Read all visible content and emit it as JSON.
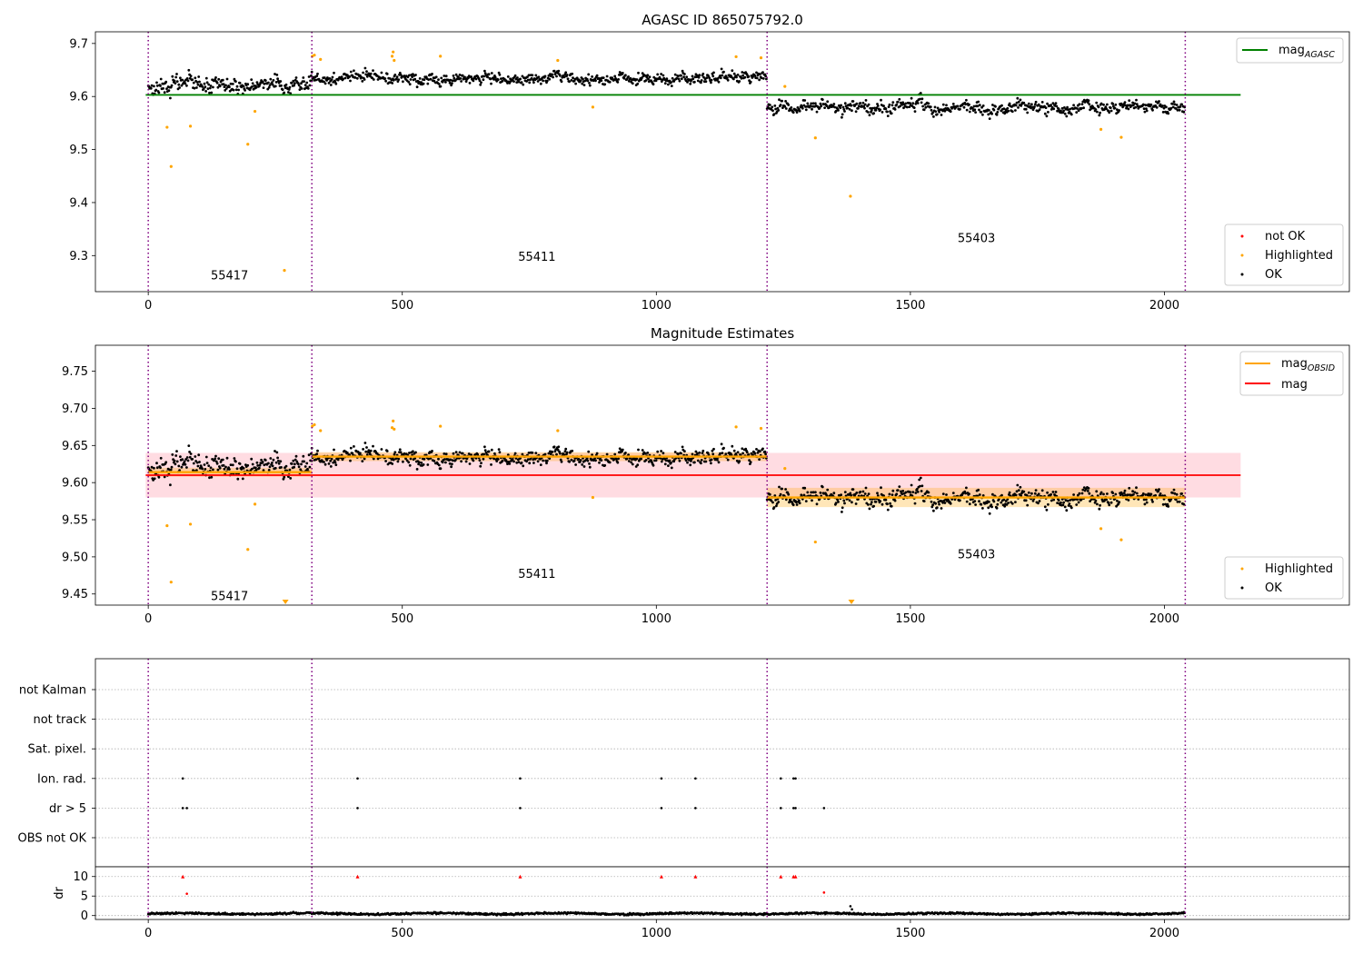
{
  "title": "AGASC ID 865075792.0",
  "colors": {
    "ok": "#000000",
    "highlighted": "#ffa500",
    "not_ok": "#ff0000",
    "mag_agasc": "#008000",
    "mag": "#ff0000",
    "mag_obsid": "#ffa500",
    "obs_boundary": "#800080",
    "band": "#ffc0cb"
  },
  "chart_data": [
    {
      "type": "scatter",
      "title": "AGASC ID 865075792.0",
      "xlim": [
        -104,
        2364
      ],
      "ylim": [
        9.232,
        9.722
      ],
      "xticks": [
        0,
        500,
        1000,
        1500,
        2000
      ],
      "yticks": [
        9.3,
        9.4,
        9.5,
        9.6,
        9.7
      ],
      "grid": false,
      "legend_upper": {
        "position": "top-right",
        "entries": [
          {
            "label": "mag",
            "subscript": "AGASC",
            "style": "line",
            "color": "#008000"
          }
        ]
      },
      "legend_lower": {
        "position": "bottom-right",
        "entries": [
          {
            "label": "not OK",
            "style": "dot",
            "color": "#ff0000"
          },
          {
            "label": "Highlighted",
            "style": "dot",
            "color": "#ffa500"
          },
          {
            "label": "OK",
            "style": "dot",
            "color": "#000000"
          }
        ]
      },
      "mag_agasc": {
        "value": 9.603,
        "x_range": [
          -5,
          2150
        ]
      },
      "obs_boundaries": [
        0,
        322,
        1218,
        2041
      ],
      "obsid_labels": [
        {
          "text": "55417",
          "x": 160,
          "y": 9.255
        },
        {
          "text": "55411",
          "x": 765,
          "y": 9.29
        },
        {
          "text": "55403",
          "x": 1630,
          "y": 9.325
        }
      ],
      "ok_segments": [
        {
          "x_start": 0,
          "x_end": 322,
          "center": 9.622,
          "spread": 0.018
        },
        {
          "x_start": 322,
          "x_end": 1218,
          "center": 9.635,
          "spread": 0.013
        },
        {
          "x_start": 1218,
          "x_end": 2041,
          "center": 9.58,
          "spread": 0.014
        }
      ],
      "highlighted_points": [
        [
          37,
          9.542
        ],
        [
          45,
          9.468
        ],
        [
          83,
          9.544
        ],
        [
          196,
          9.51
        ],
        [
          210,
          9.572
        ],
        [
          268,
          9.272
        ],
        [
          323,
          9.676
        ],
        [
          327,
          9.678
        ],
        [
          339,
          9.67
        ],
        [
          480,
          9.676
        ],
        [
          482,
          9.684
        ],
        [
          484,
          9.668
        ],
        [
          575,
          9.676
        ],
        [
          806,
          9.668
        ],
        [
          875,
          9.58
        ],
        [
          1157,
          9.675
        ],
        [
          1206,
          9.673
        ],
        [
          1253,
          9.619
        ],
        [
          1313,
          9.522
        ],
        [
          1382,
          9.412
        ],
        [
          1875,
          9.538
        ],
        [
          1915,
          9.523
        ]
      ]
    },
    {
      "type": "scatter",
      "title": "Magnitude Estimates",
      "xlim": [
        -104,
        2364
      ],
      "ylim": [
        9.435,
        9.785
      ],
      "xticks": [
        0,
        500,
        1000,
        1500,
        2000
      ],
      "yticks": [
        9.45,
        9.5,
        9.55,
        9.6,
        9.65,
        9.7,
        9.75
      ],
      "grid": false,
      "legend_upper": {
        "position": "top-right",
        "entries": [
          {
            "label": "mag",
            "subscript": "OBSID",
            "style": "line",
            "color": "#ffa500"
          },
          {
            "label": "mag",
            "subscript": "",
            "style": "line",
            "color": "#ff0000"
          }
        ]
      },
      "legend_lower": {
        "position": "bottom-right",
        "entries": [
          {
            "label": "Highlighted",
            "style": "dot",
            "color": "#ffa500"
          },
          {
            "label": "OK",
            "style": "dot",
            "color": "#000000"
          }
        ]
      },
      "mag": {
        "value": 9.61,
        "band": [
          9.58,
          9.64
        ],
        "x_range": [
          -5,
          2150
        ]
      },
      "mag_obsid": [
        {
          "x_start": 0,
          "x_end": 322,
          "value": 9.614,
          "band": [
            9.608,
            9.62
          ]
        },
        {
          "x_start": 322,
          "x_end": 1218,
          "value": 9.635,
          "band": [
            9.629,
            9.641
          ]
        },
        {
          "x_start": 1218,
          "x_end": 2041,
          "value": 9.58,
          "band": [
            9.567,
            9.593
          ]
        }
      ],
      "obs_boundaries": [
        0,
        322,
        1218,
        2041
      ],
      "obsid_labels": [
        {
          "text": "55417",
          "x": 160,
          "y": 9.442
        },
        {
          "text": "55411",
          "x": 765,
          "y": 9.472
        },
        {
          "text": "55403",
          "x": 1630,
          "y": 9.498
        }
      ],
      "ok_segments": [
        {
          "x_start": 0,
          "x_end": 322,
          "center": 9.622,
          "spread": 0.018
        },
        {
          "x_start": 322,
          "x_end": 1218,
          "center": 9.635,
          "spread": 0.013
        },
        {
          "x_start": 1218,
          "x_end": 2041,
          "center": 9.58,
          "spread": 0.014
        }
      ],
      "highlighted_points": [
        [
          37,
          9.542
        ],
        [
          45,
          9.466
        ],
        [
          83,
          9.544
        ],
        [
          196,
          9.51
        ],
        [
          210,
          9.571
        ],
        [
          323,
          9.676
        ],
        [
          327,
          9.678
        ],
        [
          339,
          9.67
        ],
        [
          480,
          9.674
        ],
        [
          482,
          9.683
        ],
        [
          484,
          9.672
        ],
        [
          575,
          9.676
        ],
        [
          806,
          9.67
        ],
        [
          875,
          9.58
        ],
        [
          1157,
          9.675
        ],
        [
          1206,
          9.673
        ],
        [
          1253,
          9.619
        ],
        [
          1313,
          9.52
        ],
        [
          1875,
          9.538
        ],
        [
          1915,
          9.523
        ]
      ],
      "clipped_markers": [
        {
          "x": 270
        },
        {
          "x": 1384
        }
      ]
    },
    {
      "type": "scatter",
      "title": "",
      "xlim": [
        -104,
        2364
      ],
      "categories": [
        "not Kalman",
        "not track",
        "Sat. pixel.",
        "Ion. rad.",
        "dr > 5",
        "OBS not OK"
      ],
      "grid": true,
      "obs_boundaries": [
        0,
        322,
        1218,
        2041
      ],
      "flags": {
        "Ion. rad.": [
          68,
          412,
          732,
          1010,
          1077,
          1245,
          1270,
          1274
        ],
        "dr > 5": [
          68,
          76,
          412,
          732,
          1010,
          1077,
          1245,
          1270,
          1274,
          1330
        ]
      }
    },
    {
      "type": "scatter",
      "title": "",
      "xlim": [
        -104,
        2364
      ],
      "ylim": [
        -1,
        12.5
      ],
      "xticks": [
        0,
        500,
        1000,
        1500,
        2000
      ],
      "yticks": [
        0,
        5,
        10
      ],
      "ylabel": "dr",
      "grid": true,
      "dr_baseline": {
        "x_start": 0,
        "x_end": 2041,
        "center": 0.5,
        "spread": 0.35
      },
      "dr_outliers": [
        [
          1382,
          2.4
        ],
        [
          1385,
          1.6
        ]
      ],
      "dr_flagged": [
        [
          68,
          10
        ],
        [
          76,
          5.6
        ],
        [
          412,
          10
        ],
        [
          732,
          10
        ],
        [
          1010,
          10
        ],
        [
          1077,
          10
        ],
        [
          1245,
          10
        ],
        [
          1270,
          10
        ],
        [
          1274,
          10
        ],
        [
          1330,
          5.9
        ]
      ]
    }
  ]
}
